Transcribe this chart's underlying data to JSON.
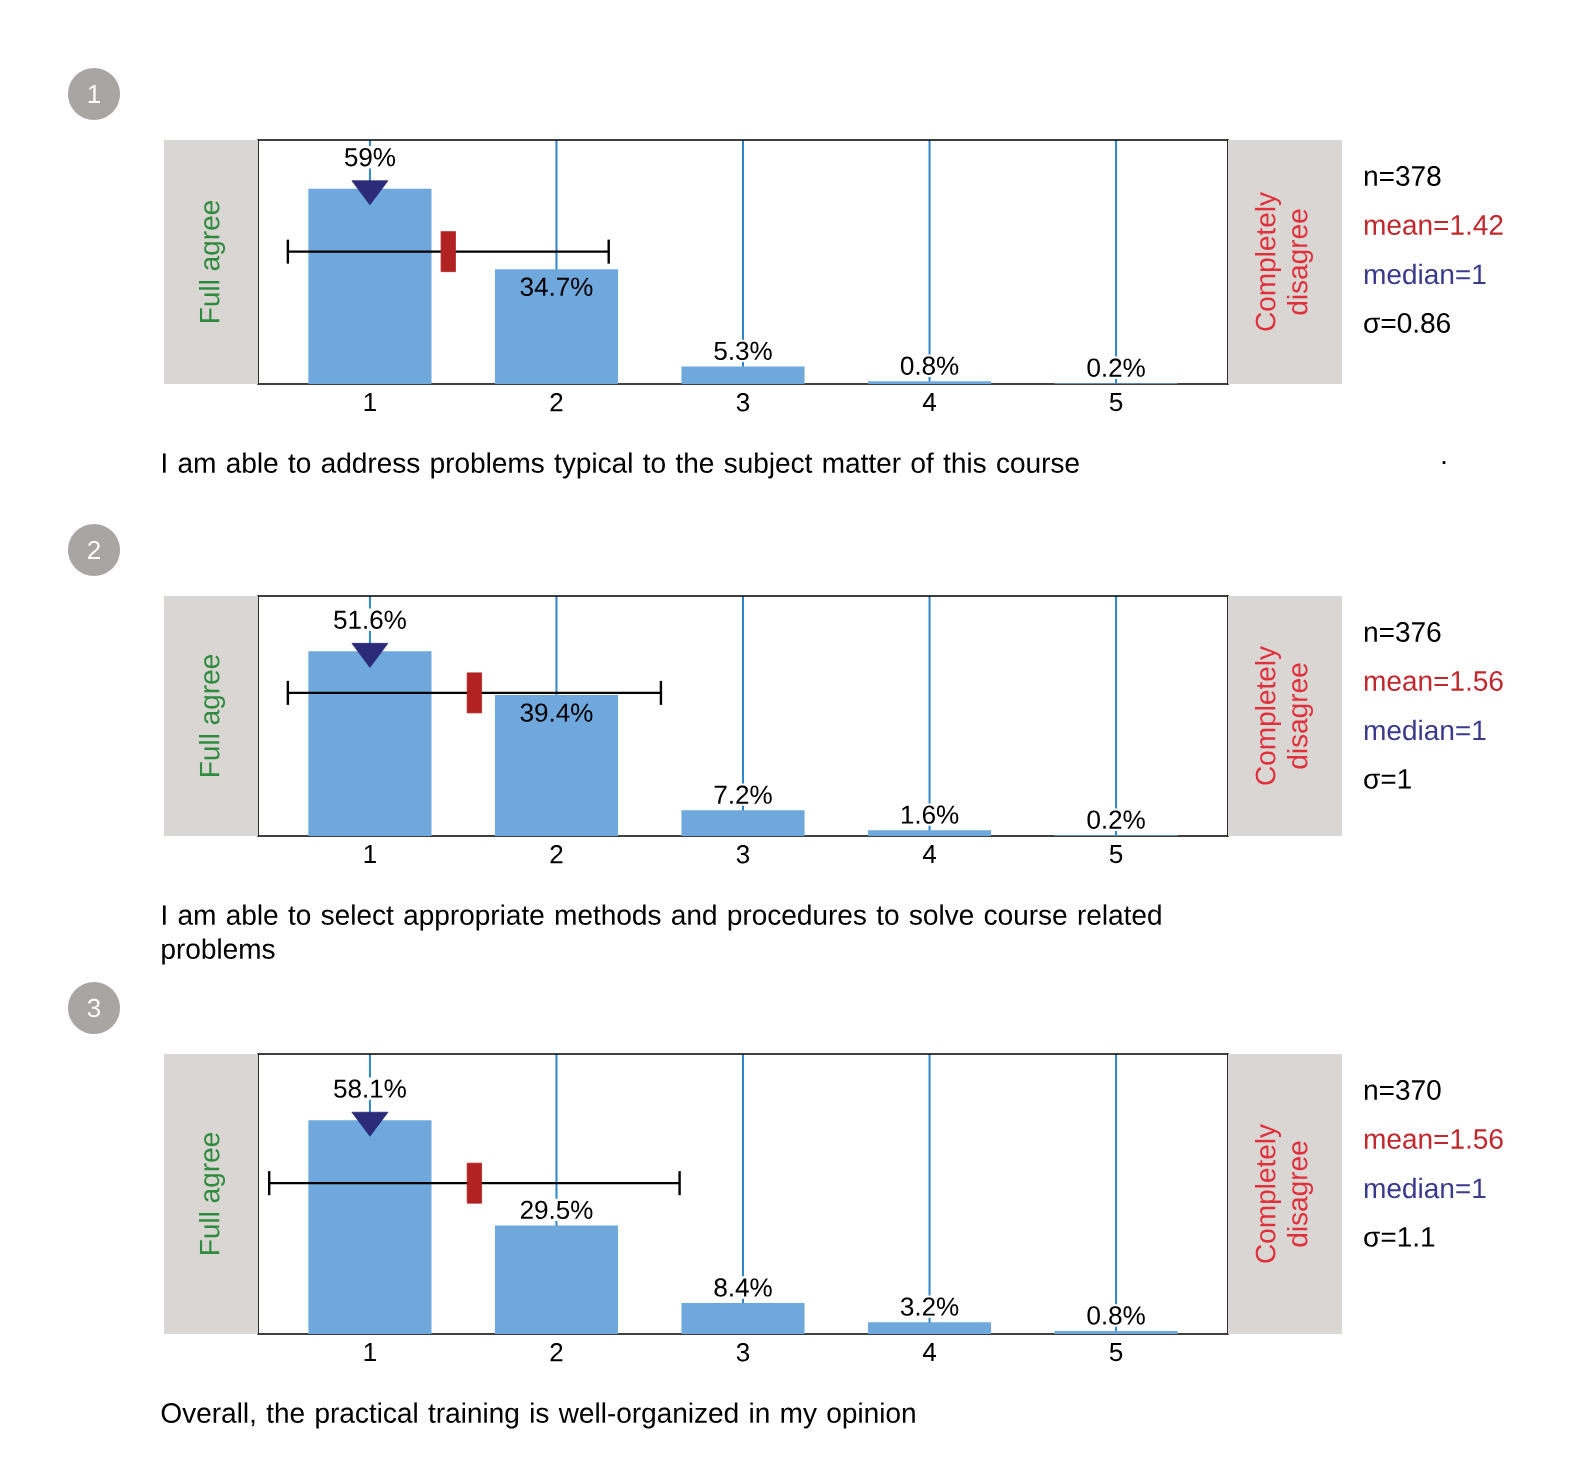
{
  "chart_data": [
    {
      "type": "bar",
      "xlabel": "I am able to address problems typical to the subject matter of this course",
      "ylabel": "Full agree",
      "y2label": "Completely disagree",
      "x": [
        1,
        2,
        3,
        4,
        5
      ],
      "xlim": [
        0.4,
        5.6
      ],
      "xticks": [
        1,
        2,
        3,
        4,
        5
      ],
      "grid": "x",
      "annotations": [
        "1",
        "n=378",
        "mean=1.42",
        "median=1",
        "σ=0.86",
        "."
      ],
      "series": [
        {
          "type": "bar",
          "color": "#6fa8dc",
          "values": [
            59,
            34.7,
            5.3,
            0.8,
            0.2
          ],
          "value_labels": [
            "59%",
            "34.7%",
            "5.3%",
            "0.8%",
            "0.2%"
          ]
        },
        {
          "type": "scatter",
          "marker": "square",
          "color": "#b22222",
          "x": [
            1.42
          ],
          "values": [
            40
          ],
          "xerrors": [
            0.86
          ]
        },
        {
          "type": "scatter",
          "marker": "triangle",
          "color": "#2b2b7a",
          "x": [
            1
          ],
          "values": [
            59
          ]
        }
      ]
    },
    {
      "type": "bar",
      "xlabel": "I am able to select appropriate methods and procedures to solve course related problems",
      "ylabel": "Full agree",
      "y2label": "Completely disagree",
      "x": [
        1,
        2,
        3,
        4,
        5
      ],
      "xlim": [
        0.4,
        5.6
      ],
      "xticks": [
        1,
        2,
        3,
        4,
        5
      ],
      "grid": "x",
      "annotations": [
        "2",
        "n=376",
        "mean=1.56",
        "median=1",
        "σ=1"
      ],
      "series": [
        {
          "type": "bar",
          "color": "#6fa8dc",
          "values": [
            51.6,
            39.4,
            7.2,
            1.6,
            0.2
          ],
          "value_labels": [
            "51.6%",
            "39.4%",
            "7.2%",
            "1.6%",
            "0.2%"
          ]
        },
        {
          "type": "scatter",
          "marker": "square",
          "color": "#b22222",
          "x": [
            1.56
          ],
          "values": [
            40
          ],
          "xerrors": [
            1
          ]
        },
        {
          "type": "scatter",
          "marker": "triangle",
          "color": "#2b2b7a",
          "x": [
            1
          ],
          "values": [
            51.6
          ]
        }
      ]
    },
    {
      "type": "bar",
      "xlabel": "Overall, the practical training is well-organized in my opinion",
      "ylabel": "Full agree",
      "y2label": "Completely disagree",
      "x": [
        1,
        2,
        3,
        4,
        5
      ],
      "xlim": [
        0.4,
        5.6
      ],
      "xticks": [
        1,
        2,
        3,
        4,
        5
      ],
      "grid": "x",
      "annotations": [
        "3",
        "n=370",
        "mean=1.56",
        "median=1",
        "σ=1.1"
      ],
      "series": [
        {
          "type": "bar",
          "color": "#6fa8dc",
          "values": [
            58.1,
            29.5,
            8.4,
            3.2,
            0.8
          ],
          "value_labels": [
            "58.1%",
            "29.5%",
            "8.4%",
            "3.2%",
            "0.8%"
          ]
        },
        {
          "type": "scatter",
          "marker": "square",
          "color": "#b22222",
          "x": [
            1.56
          ],
          "values": [
            41
          ],
          "xerrors": [
            1.1
          ]
        },
        {
          "type": "scatter",
          "marker": "triangle",
          "color": "#2b2b7a",
          "x": [
            1
          ],
          "values": [
            58.1
          ]
        }
      ]
    }
  ]
}
